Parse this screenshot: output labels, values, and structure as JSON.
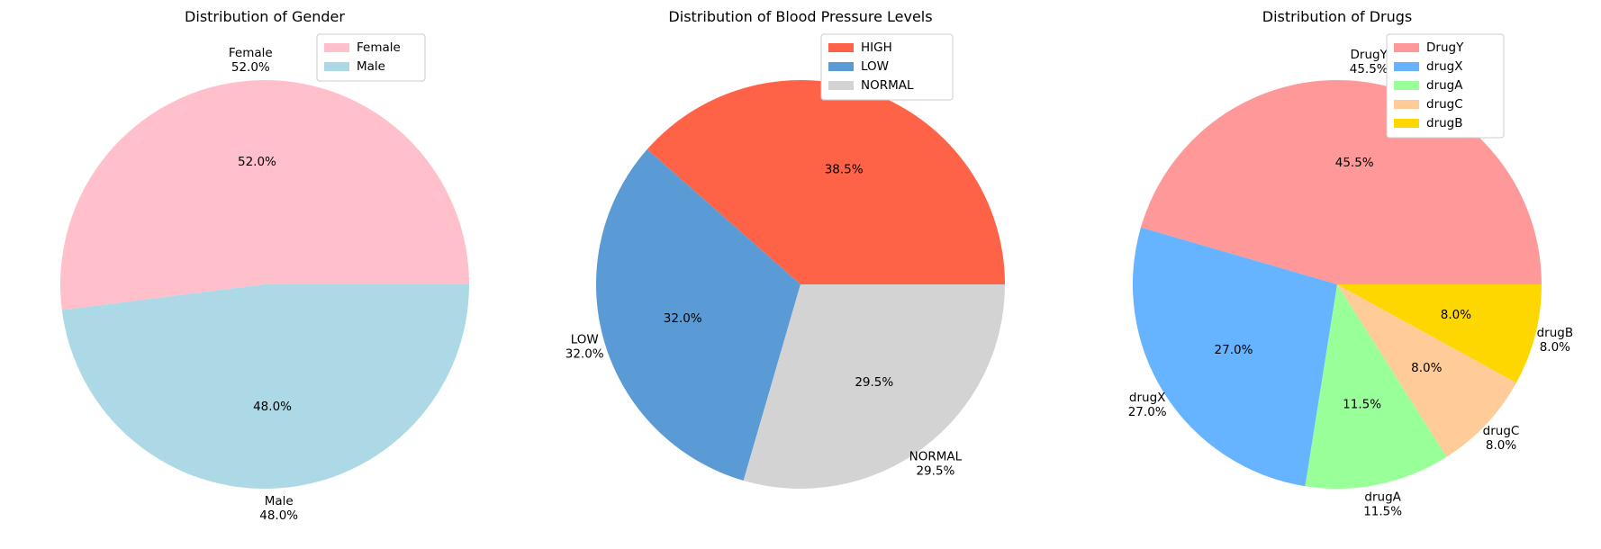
{
  "chart_data": [
    {
      "type": "pie",
      "title": "Distribution of Gender",
      "labels": [
        "Female",
        "Male"
      ],
      "values": [
        52.0,
        48.0
      ],
      "colors": [
        "#ffc0cb",
        "#add8e6"
      ],
      "value_format": "percent_1dp",
      "start_angle_deg": 0,
      "direction": "counterclockwise",
      "legend_position": "top-right"
    },
    {
      "type": "pie",
      "title": "Distribution of Blood Pressure Levels",
      "labels": [
        "HIGH",
        "LOW",
        "NORMAL"
      ],
      "values": [
        38.5,
        32.0,
        29.5
      ],
      "colors": [
        "#ff6347",
        "#5b9bd5",
        "#d3d3d3"
      ],
      "value_format": "percent_1dp",
      "start_angle_deg": 0,
      "direction": "counterclockwise",
      "legend_position": "top-right"
    },
    {
      "type": "pie",
      "title": "Distribution of Drugs",
      "labels": [
        "DrugY",
        "drugX",
        "drugA",
        "drugC",
        "drugB"
      ],
      "values": [
        45.5,
        27.0,
        11.5,
        8.0,
        8.0
      ],
      "colors": [
        "#ff9999",
        "#66b3ff",
        "#99ff99",
        "#ffcc99",
        "#ffd700"
      ],
      "value_format": "percent_1dp",
      "start_angle_deg": 0,
      "direction": "counterclockwise",
      "legend_position": "top-right"
    }
  ]
}
